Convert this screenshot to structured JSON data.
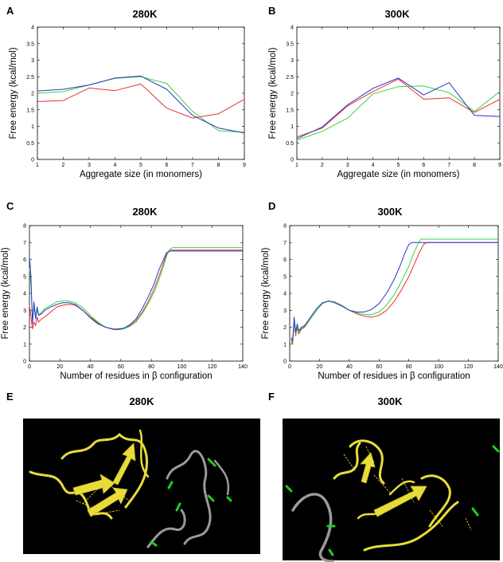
{
  "figure": {
    "colors": {
      "red": "#e8322e",
      "green": "#35d640",
      "blue": "#2b36c8",
      "ribbon": "#e8dc3a",
      "coil": "#9a9a9a",
      "marker": "#1fd01f"
    },
    "images": [
      {
        "letter": "E",
        "title": "280K",
        "description": "protein-aggregate-render"
      },
      {
        "letter": "F",
        "title": "300K",
        "description": "protein-aggregate-render"
      }
    ]
  },
  "chart_data": [
    {
      "letter": "A",
      "title": "280K",
      "type": "line",
      "xlabel": "Aggregate size (in monomers)",
      "ylabel": "Free energy (kcal/mol)",
      "xlim": [
        1,
        9
      ],
      "ylim": [
        0,
        4
      ],
      "xticks": [
        "1",
        "2",
        "3",
        "4",
        "5",
        "6",
        "7",
        "8",
        "9"
      ],
      "yticks": [
        "0",
        "0.5",
        "1",
        "1.5",
        "2",
        "2.5",
        "3",
        "3.5",
        "4"
      ],
      "series": [
        {
          "color": "red",
          "x": [
            1,
            2,
            3,
            4,
            5,
            6,
            7,
            8,
            9
          ],
          "y": [
            1.75,
            1.78,
            2.16,
            2.08,
            2.28,
            1.55,
            1.25,
            1.38,
            1.82
          ]
        },
        {
          "color": "green",
          "x": [
            1,
            2,
            3,
            4,
            5,
            6,
            7,
            8,
            9
          ],
          "y": [
            2.0,
            2.05,
            2.25,
            2.45,
            2.5,
            2.3,
            1.45,
            0.87,
            0.82
          ]
        },
        {
          "color": "blue",
          "x": [
            1,
            2,
            3,
            4,
            5,
            6,
            7,
            8,
            9
          ],
          "y": [
            2.07,
            2.12,
            2.25,
            2.46,
            2.52,
            2.12,
            1.33,
            0.95,
            0.8
          ]
        }
      ]
    },
    {
      "letter": "B",
      "title": "300K",
      "type": "line",
      "xlabel": "Aggregate size (in monomers)",
      "ylabel": "Free energy (kcal/mol)",
      "xlim": [
        1,
        9
      ],
      "ylim": [
        0,
        4
      ],
      "xticks": [
        "1",
        "2",
        "3",
        "4",
        "5",
        "6",
        "7",
        "8",
        "9"
      ],
      "yticks": [
        "0",
        "0.5",
        "1",
        "1.5",
        "2",
        "2.5",
        "3",
        "3.5",
        "4"
      ],
      "series": [
        {
          "color": "red",
          "x": [
            1,
            2,
            3,
            4,
            5,
            6,
            7,
            8,
            9
          ],
          "y": [
            0.68,
            0.95,
            1.62,
            2.05,
            2.43,
            1.82,
            1.86,
            1.42,
            1.82
          ]
        },
        {
          "color": "green",
          "x": [
            1,
            2,
            3,
            4,
            5,
            6,
            7,
            8,
            9
          ],
          "y": [
            0.58,
            0.85,
            1.25,
            1.98,
            2.2,
            2.22,
            2.02,
            1.45,
            2.05
          ]
        },
        {
          "color": "blue",
          "x": [
            1,
            2,
            3,
            4,
            5,
            6,
            7,
            8,
            9
          ],
          "y": [
            0.63,
            0.98,
            1.65,
            2.15,
            2.46,
            1.95,
            2.32,
            1.33,
            1.3
          ]
        }
      ]
    },
    {
      "letter": "C",
      "title": "280K",
      "type": "line",
      "xlabel": "Number of residues in β configuration",
      "ylabel": "Free energy (kcal/mol)",
      "xlim": [
        0,
        140
      ],
      "ylim": [
        0,
        8
      ],
      "xticks": [
        "0",
        "20",
        "40",
        "60",
        "80",
        "100",
        "120",
        "140"
      ],
      "yticks": [
        "0",
        "1",
        "2",
        "3",
        "4",
        "5",
        "6",
        "7",
        "8"
      ],
      "series": [
        {
          "color": "red",
          "x": [
            0,
            1,
            2,
            3,
            4,
            5,
            6,
            8,
            10,
            14,
            18,
            22,
            26,
            30,
            35,
            40,
            45,
            50,
            55,
            58,
            62,
            66,
            70,
            74,
            78,
            82,
            85,
            88,
            90,
            92,
            93,
            140
          ],
          "y": [
            3.3,
            2.6,
            1.9,
            2.3,
            2.1,
            2.6,
            2.3,
            2.5,
            2.6,
            2.9,
            3.2,
            3.3,
            3.35,
            3.3,
            3.0,
            2.6,
            2.25,
            2.0,
            1.9,
            1.9,
            1.95,
            2.1,
            2.4,
            2.9,
            3.5,
            4.3,
            5.0,
            5.8,
            6.3,
            6.5,
            6.55,
            6.55
          ]
        },
        {
          "color": "green",
          "x": [
            0,
            1,
            2,
            3,
            4,
            5,
            6,
            8,
            10,
            14,
            18,
            22,
            26,
            30,
            35,
            40,
            45,
            50,
            55,
            58,
            62,
            66,
            70,
            74,
            78,
            82,
            85,
            88,
            90,
            92,
            94,
            140
          ],
          "y": [
            5.5,
            4.5,
            2.5,
            3.1,
            2.6,
            3.0,
            2.7,
            2.9,
            3.1,
            3.3,
            3.5,
            3.55,
            3.55,
            3.45,
            3.15,
            2.7,
            2.3,
            2.0,
            1.88,
            1.85,
            1.9,
            2.05,
            2.3,
            2.8,
            3.4,
            4.1,
            4.8,
            5.6,
            6.2,
            6.6,
            6.7,
            6.7
          ]
        },
        {
          "color": "blue",
          "x": [
            0,
            1,
            2,
            3,
            4,
            5,
            6,
            8,
            10,
            14,
            18,
            22,
            26,
            30,
            35,
            40,
            45,
            50,
            55,
            58,
            62,
            66,
            70,
            74,
            78,
            82,
            85,
            88,
            90,
            92,
            140
          ],
          "y": [
            6.2,
            5.0,
            2.2,
            3.5,
            2.5,
            3.2,
            2.7,
            2.8,
            3.0,
            3.2,
            3.35,
            3.45,
            3.45,
            3.35,
            3.0,
            2.55,
            2.2,
            2.0,
            1.88,
            1.88,
            1.95,
            2.15,
            2.5,
            3.1,
            3.8,
            4.6,
            5.4,
            6.0,
            6.4,
            6.5,
            6.5
          ]
        }
      ]
    },
    {
      "letter": "D",
      "title": "300K",
      "type": "line",
      "xlabel": "Number of residues in β configuration",
      "ylabel": "Free energy (kcal/mol)",
      "xlim": [
        0,
        140
      ],
      "ylim": [
        0,
        8
      ],
      "xticks": [
        "0",
        "20",
        "40",
        "60",
        "80",
        "100",
        "120",
        "140"
      ],
      "yticks": [
        "0",
        "1",
        "2",
        "3",
        "4",
        "5",
        "6",
        "7",
        "8"
      ],
      "series": [
        {
          "color": "red",
          "x": [
            1,
            2,
            3,
            4,
            5,
            6,
            8,
            10,
            14,
            18,
            22,
            26,
            30,
            35,
            40,
            45,
            50,
            55,
            60,
            65,
            70,
            75,
            80,
            84,
            87,
            90,
            92,
            140
          ],
          "y": [
            1.2,
            1.0,
            2.3,
            1.5,
            2.0,
            1.6,
            1.9,
            2.0,
            2.5,
            3.0,
            3.4,
            3.55,
            3.5,
            3.3,
            3.0,
            2.8,
            2.65,
            2.6,
            2.7,
            3.0,
            3.5,
            4.2,
            5.0,
            5.8,
            6.4,
            6.9,
            7.0,
            7.0
          ]
        },
        {
          "color": "green",
          "x": [
            1,
            2,
            3,
            4,
            5,
            6,
            8,
            10,
            14,
            18,
            22,
            26,
            30,
            35,
            40,
            45,
            50,
            55,
            60,
            65,
            70,
            75,
            80,
            83,
            86,
            88,
            140
          ],
          "y": [
            1.3,
            1.1,
            2.4,
            1.6,
            2.1,
            1.7,
            1.95,
            2.05,
            2.5,
            3.0,
            3.4,
            3.55,
            3.5,
            3.3,
            3.0,
            2.85,
            2.75,
            2.75,
            2.9,
            3.3,
            3.9,
            4.7,
            5.6,
            6.3,
            6.9,
            7.2,
            7.2
          ]
        },
        {
          "color": "blue",
          "x": [
            1,
            2,
            3,
            4,
            5,
            6,
            8,
            10,
            14,
            18,
            22,
            26,
            30,
            35,
            40,
            45,
            50,
            55,
            60,
            65,
            70,
            74,
            77,
            80,
            82,
            140
          ],
          "y": [
            1.4,
            1.2,
            2.6,
            1.7,
            2.2,
            1.8,
            2.0,
            2.1,
            2.6,
            3.1,
            3.45,
            3.55,
            3.45,
            3.25,
            3.0,
            2.9,
            2.9,
            3.05,
            3.4,
            4.0,
            4.8,
            5.6,
            6.3,
            6.9,
            7.0,
            7.0
          ]
        }
      ]
    }
  ]
}
